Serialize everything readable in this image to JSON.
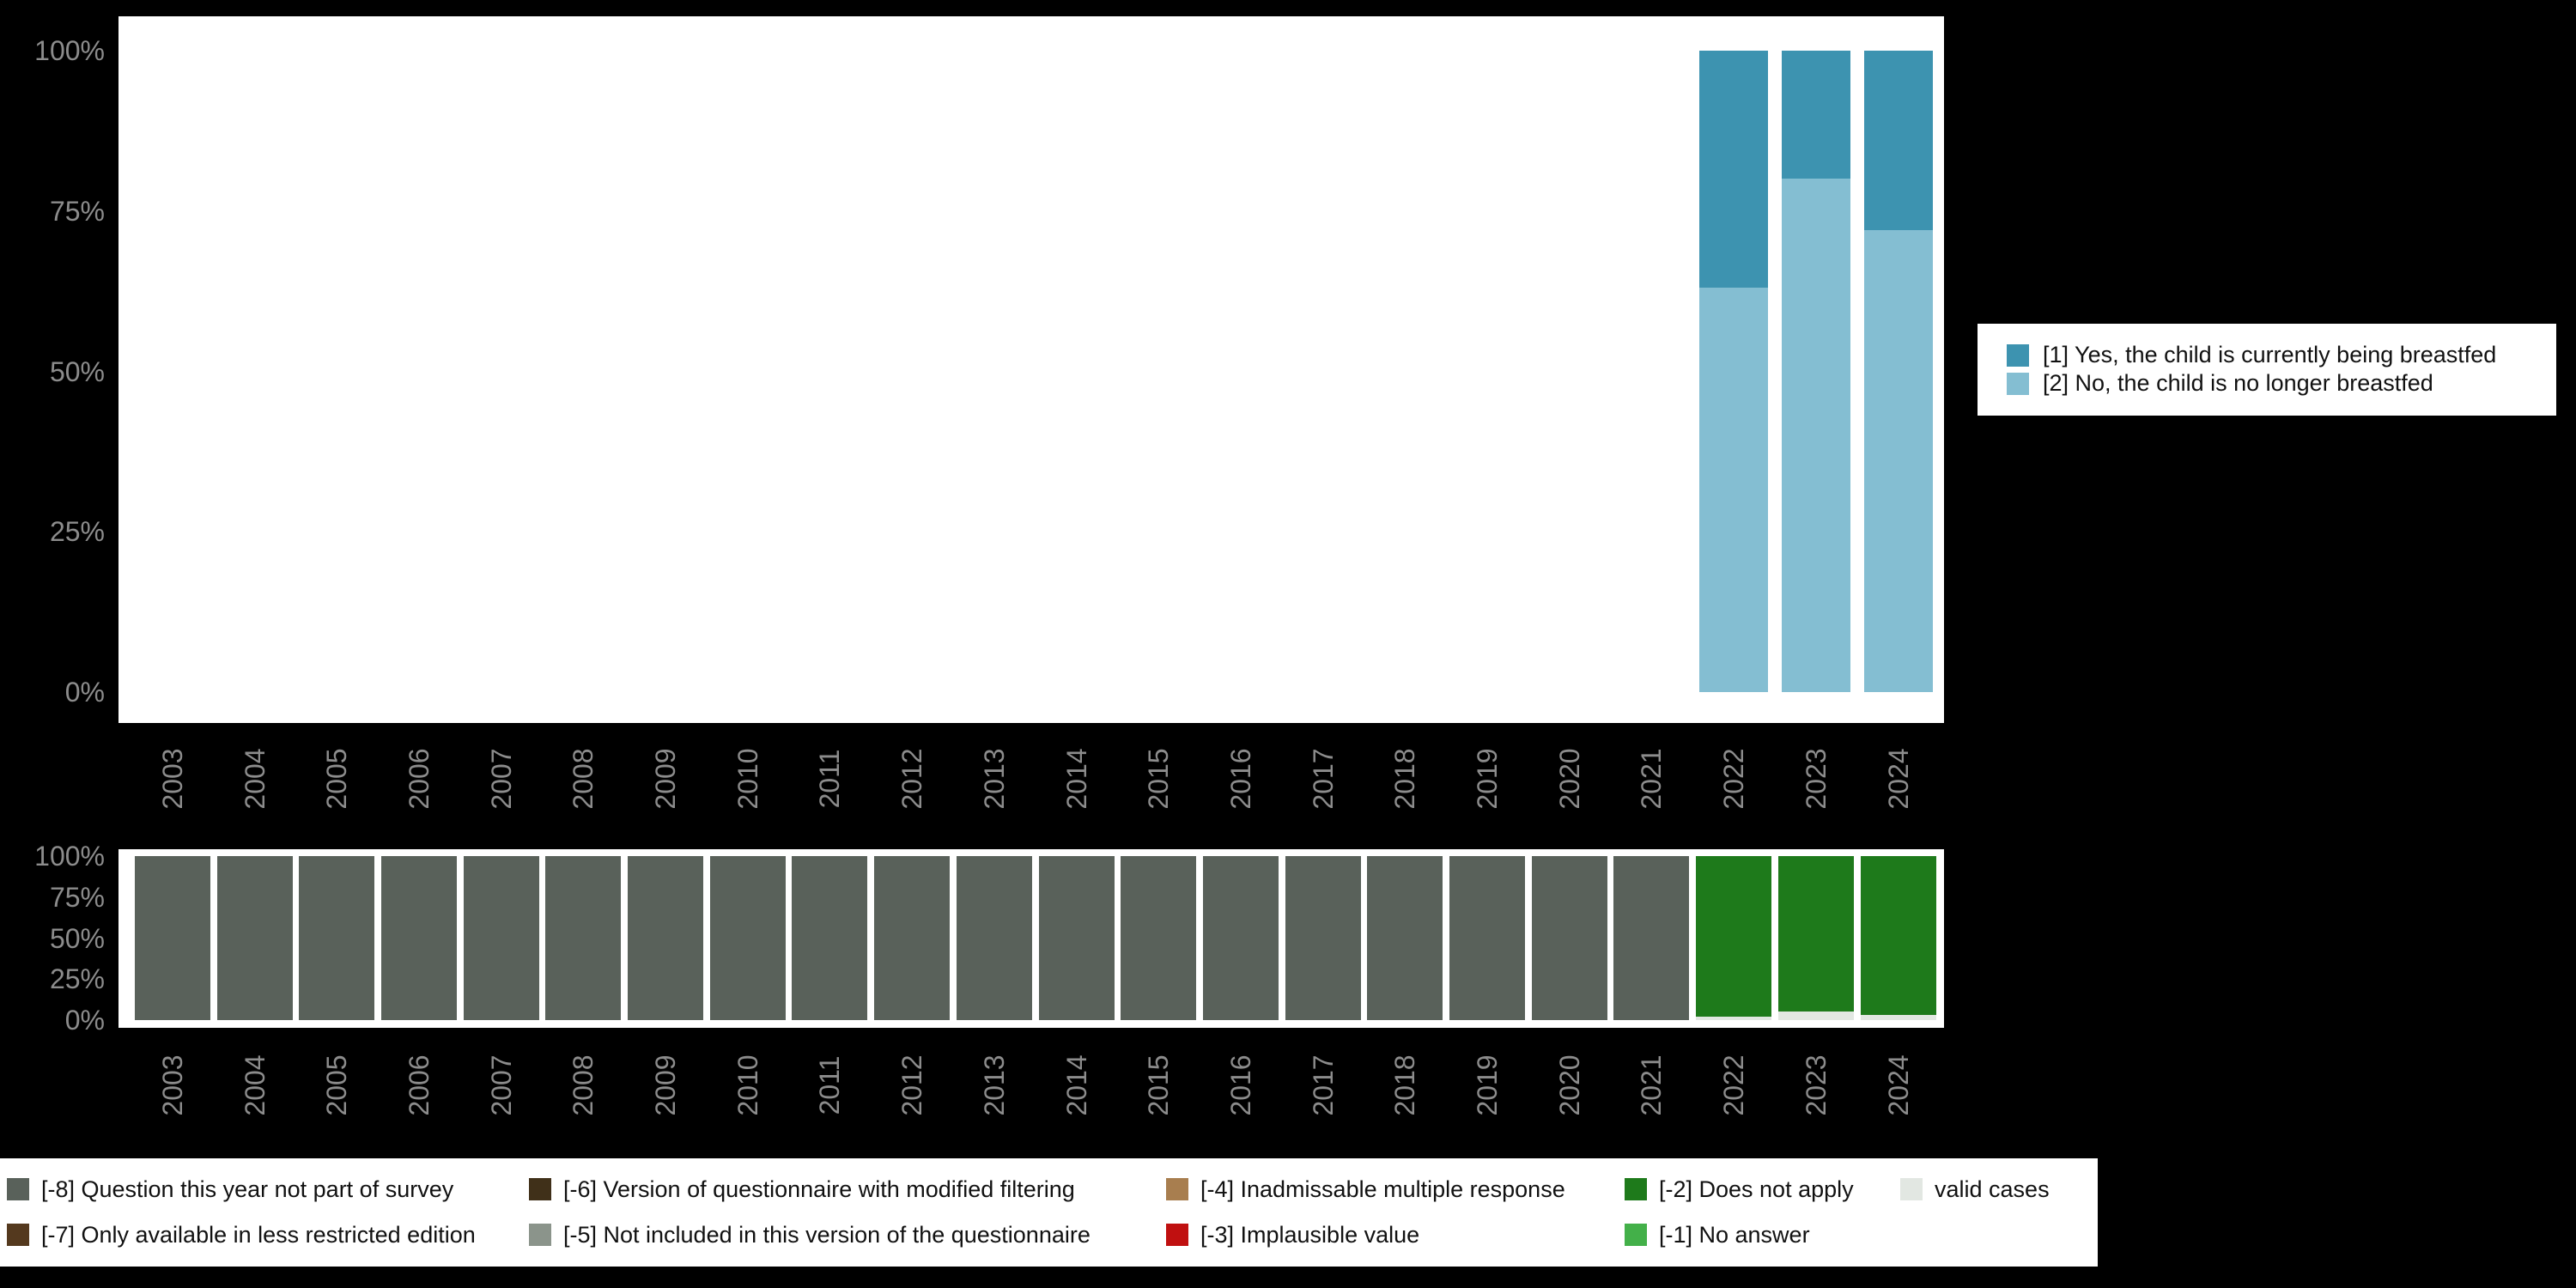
{
  "background_color": "#000000",
  "axis_text_color": "#8c8c8c",
  "top_legend": {
    "items": [
      {
        "label": "[1] Yes, the child is currently being breastfed",
        "color": "#3d93b0"
      },
      {
        "label": "[2] No, the child is no longer breastfed",
        "color": "#84bed2"
      }
    ]
  },
  "missing_legend": {
    "row1": [
      {
        "label": "[-8] Question this year not part of survey",
        "color": "#59615a"
      },
      {
        "label": "[-6] Version of questionnaire with modified filtering",
        "color": "#403019"
      },
      {
        "label": "[-4] Inadmissable multiple response",
        "color": "#a87e4f"
      },
      {
        "label": "[-2] Does not apply",
        "color": "#1e7a1b"
      },
      {
        "label": "valid cases",
        "color": "#e2e7e2"
      }
    ],
    "row2": [
      {
        "label": "[-7] Only available in less restricted edition",
        "color": "#54391e"
      },
      {
        "label": "[-5] Not included in this version of the questionnaire",
        "color": "#8b948b"
      },
      {
        "label": "[-3] Implausible value",
        "color": "#c01010"
      },
      {
        "label": "[-1] No answer",
        "color": "#43b049"
      }
    ]
  },
  "chart_data": [
    {
      "type": "bar",
      "stacked": true,
      "title": "",
      "xlabel": "",
      "ylabel": "",
      "ylim": [
        0,
        100
      ],
      "y_ticks": [
        "0%",
        "25%",
        "50%",
        "75%",
        "100%"
      ],
      "grid": false,
      "legend_position": "right",
      "categories": [
        "2003",
        "2004",
        "2005",
        "2006",
        "2007",
        "2008",
        "2009",
        "2010",
        "2011",
        "2012",
        "2013",
        "2014",
        "2015",
        "2016",
        "2017",
        "2018",
        "2019",
        "2020",
        "2021",
        "2022",
        "2023",
        "2024"
      ],
      "series": [
        {
          "name": "[2] No, the child is no longer breastfed",
          "color": "#84bed2",
          "values": [
            0,
            0,
            0,
            0,
            0,
            0,
            0,
            0,
            0,
            0,
            0,
            0,
            0,
            0,
            0,
            0,
            0,
            0,
            0,
            63,
            80,
            72
          ]
        },
        {
          "name": "[1] Yes, the child is currently being breastfed",
          "color": "#3d93b0",
          "values": [
            0,
            0,
            0,
            0,
            0,
            0,
            0,
            0,
            0,
            0,
            0,
            0,
            0,
            0,
            0,
            0,
            0,
            0,
            0,
            37,
            20,
            28
          ]
        }
      ]
    },
    {
      "type": "bar",
      "stacked": true,
      "title": "",
      "xlabel": "",
      "ylabel": "",
      "ylim": [
        0,
        100
      ],
      "y_ticks": [
        "0%",
        "25%",
        "50%",
        "75%",
        "100%"
      ],
      "grid": false,
      "legend_position": "bottom",
      "categories": [
        "2003",
        "2004",
        "2005",
        "2006",
        "2007",
        "2008",
        "2009",
        "2010",
        "2011",
        "2012",
        "2013",
        "2014",
        "2015",
        "2016",
        "2017",
        "2018",
        "2019",
        "2020",
        "2021",
        "2022",
        "2023",
        "2024"
      ],
      "series": [
        {
          "name": "valid cases",
          "color": "#e2e7e2",
          "values": [
            0,
            0,
            0,
            0,
            0,
            0,
            0,
            0,
            0,
            0,
            0,
            0,
            0,
            0,
            0,
            0,
            0,
            0,
            0,
            2,
            5,
            3
          ]
        },
        {
          "name": "[-2] Does not apply",
          "color": "#1e7a1b",
          "values": [
            0,
            0,
            0,
            0,
            0,
            0,
            0,
            0,
            0,
            0,
            0,
            0,
            0,
            0,
            0,
            0,
            0,
            0,
            0,
            98,
            95,
            97
          ]
        },
        {
          "name": "[-8] Question this year not part of survey",
          "color": "#59615a",
          "values": [
            100,
            100,
            100,
            100,
            100,
            100,
            100,
            100,
            100,
            100,
            100,
            100,
            100,
            100,
            100,
            100,
            100,
            100,
            100,
            0,
            0,
            0
          ]
        }
      ]
    }
  ]
}
